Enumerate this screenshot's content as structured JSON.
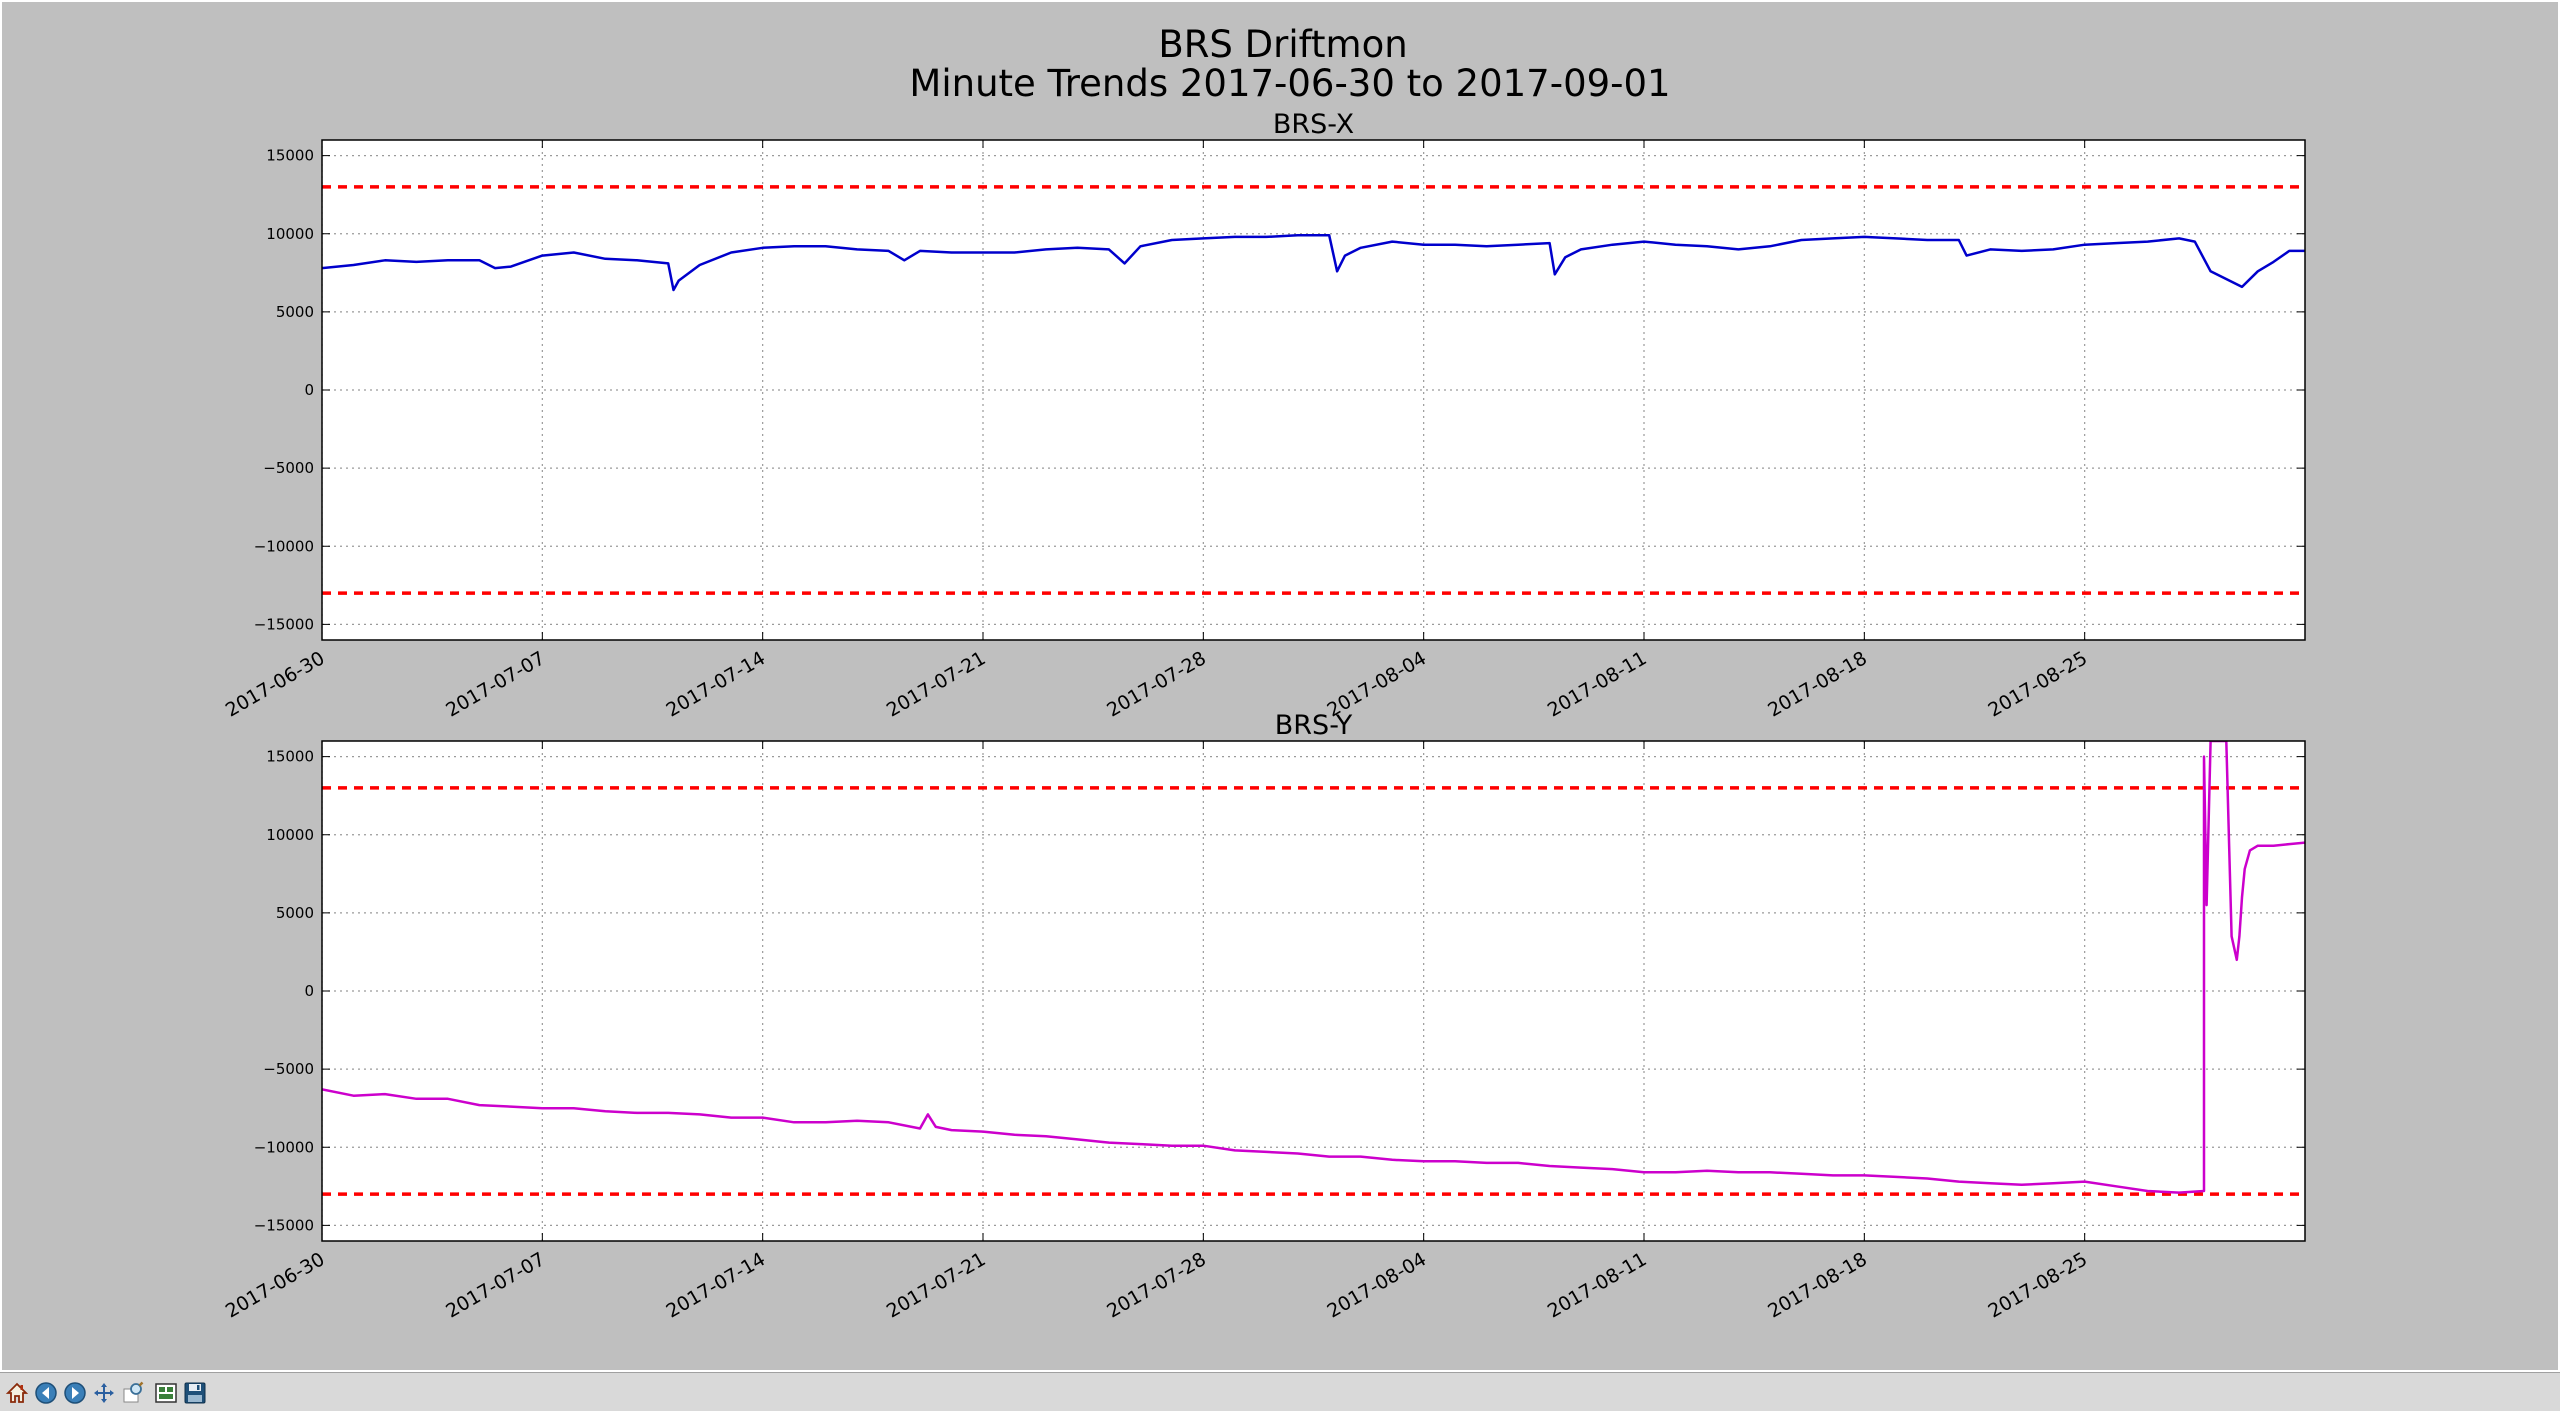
{
  "figure": {
    "title_line1": "BRS Driftmon",
    "title_line2": "Minute Trends 2017-06-30  to 2017-09-01"
  },
  "toolbar": {
    "buttons": [
      {
        "name": "home-icon"
      },
      {
        "name": "back-arrow-icon"
      },
      {
        "name": "forward-arrow-icon"
      },
      {
        "name": "pan-icon"
      },
      {
        "name": "zoom-icon"
      },
      {
        "name": "subplots-config-icon"
      },
      {
        "name": "save-icon"
      }
    ]
  },
  "chart_data": [
    {
      "type": "line",
      "title": "BRS-X",
      "xlabel": "",
      "ylabel": "",
      "xlim": [
        "2017-06-30",
        "2017-09-01"
      ],
      "ylim": [
        -16000,
        16000
      ],
      "x_ticks": [
        "2017-06-30",
        "2017-07-07",
        "2017-07-14",
        "2017-07-21",
        "2017-07-28",
        "2017-08-04",
        "2017-08-11",
        "2017-08-18",
        "2017-08-25"
      ],
      "y_ticks": [
        15000,
        10000,
        5000,
        0,
        -5000,
        -10000,
        -15000
      ],
      "y_tick_labels": [
        "15000",
        "10000",
        "5000",
        "0",
        "−5000",
        "−10000",
        "−15000"
      ],
      "grid": true,
      "thresholds": [
        13000,
        -13000
      ],
      "threshold_color": "#ff0000",
      "series": [
        {
          "color": "#0000cc",
          "x": [
            "2017-06-30",
            "2017-07-01",
            "2017-07-02",
            "2017-07-03",
            "2017-07-04",
            "2017-07-05",
            "2017-07-05 12:00",
            "2017-07-06",
            "2017-07-07",
            "2017-07-08",
            "2017-07-09",
            "2017-07-10",
            "2017-07-11",
            "2017-07-11 04:00",
            "2017-07-11 08:00",
            "2017-07-12",
            "2017-07-13",
            "2017-07-14",
            "2017-07-15",
            "2017-07-16",
            "2017-07-17",
            "2017-07-18",
            "2017-07-18 12:00",
            "2017-07-19",
            "2017-07-20",
            "2017-07-21",
            "2017-07-22",
            "2017-07-23",
            "2017-07-24",
            "2017-07-25",
            "2017-07-25 12:00",
            "2017-07-26",
            "2017-07-27",
            "2017-07-28",
            "2017-07-29",
            "2017-07-30",
            "2017-07-31",
            "2017-08-01",
            "2017-08-01 06:00",
            "2017-08-01 12:00",
            "2017-08-02",
            "2017-08-03",
            "2017-08-04",
            "2017-08-05",
            "2017-08-06",
            "2017-08-07",
            "2017-08-08",
            "2017-08-08 04:00",
            "2017-08-08 12:00",
            "2017-08-09",
            "2017-08-10",
            "2017-08-11",
            "2017-08-12",
            "2017-08-13",
            "2017-08-14",
            "2017-08-15",
            "2017-08-16",
            "2017-08-17",
            "2017-08-18",
            "2017-08-19",
            "2017-08-20",
            "2017-08-21",
            "2017-08-21 06:00",
            "2017-08-22",
            "2017-08-23",
            "2017-08-24",
            "2017-08-25",
            "2017-08-26",
            "2017-08-27",
            "2017-08-28",
            "2017-08-28 12:00",
            "2017-08-29",
            "2017-08-30",
            "2017-08-30 12:00",
            "2017-08-31",
            "2017-08-31 12:00",
            "2017-09-01"
          ],
          "y": [
            7800,
            8000,
            8300,
            8200,
            8300,
            8300,
            7800,
            7900,
            8600,
            8800,
            8400,
            8300,
            8100,
            6400,
            7000,
            8000,
            8800,
            9100,
            9200,
            9200,
            9000,
            8900,
            8300,
            8900,
            8800,
            8800,
            8800,
            9000,
            9100,
            9000,
            8100,
            9200,
            9600,
            9700,
            9800,
            9800,
            9900,
            9900,
            7600,
            8600,
            9100,
            9500,
            9300,
            9300,
            9200,
            9300,
            9400,
            7400,
            8500,
            9000,
            9300,
            9500,
            9300,
            9200,
            9000,
            9200,
            9600,
            9700,
            9800,
            9700,
            9600,
            9600,
            8600,
            9000,
            8900,
            9000,
            9300,
            9400,
            9500,
            9700,
            9500,
            7600,
            6600,
            7600,
            8200,
            8900,
            8900
          ]
        }
      ]
    },
    {
      "type": "line",
      "title": "BRS-Y",
      "xlabel": "",
      "ylabel": "",
      "xlim": [
        "2017-06-30",
        "2017-09-01"
      ],
      "ylim": [
        -16000,
        16000
      ],
      "x_ticks": [
        "2017-06-30",
        "2017-07-07",
        "2017-07-14",
        "2017-07-21",
        "2017-07-28",
        "2017-08-04",
        "2017-08-11",
        "2017-08-18",
        "2017-08-25"
      ],
      "y_ticks": [
        15000,
        10000,
        5000,
        0,
        -5000,
        -10000,
        -15000
      ],
      "y_tick_labels": [
        "15000",
        "10000",
        "5000",
        "0",
        "−5000",
        "−10000",
        "−15000"
      ],
      "grid": true,
      "thresholds": [
        13000,
        -13000
      ],
      "threshold_color": "#ff0000",
      "series": [
        {
          "color": "#cc00cc",
          "x": [
            "2017-06-30",
            "2017-07-01",
            "2017-07-02",
            "2017-07-03",
            "2017-07-04",
            "2017-07-05",
            "2017-07-06",
            "2017-07-07",
            "2017-07-08",
            "2017-07-09",
            "2017-07-10",
            "2017-07-11",
            "2017-07-12",
            "2017-07-13",
            "2017-07-14",
            "2017-07-15",
            "2017-07-16",
            "2017-07-17",
            "2017-07-18",
            "2017-07-19",
            "2017-07-19 06:00",
            "2017-07-19 12:00",
            "2017-07-20",
            "2017-07-21",
            "2017-07-22",
            "2017-07-23",
            "2017-07-24",
            "2017-07-25",
            "2017-07-26",
            "2017-07-27",
            "2017-07-28",
            "2017-07-29",
            "2017-07-30",
            "2017-07-31",
            "2017-08-01",
            "2017-08-02",
            "2017-08-03",
            "2017-08-04",
            "2017-08-05",
            "2017-08-06",
            "2017-08-07",
            "2017-08-08",
            "2017-08-09",
            "2017-08-10",
            "2017-08-11",
            "2017-08-12",
            "2017-08-13",
            "2017-08-14",
            "2017-08-15",
            "2017-08-16",
            "2017-08-17",
            "2017-08-18",
            "2017-08-19",
            "2017-08-20",
            "2017-08-21",
            "2017-08-22",
            "2017-08-23",
            "2017-08-24",
            "2017-08-25",
            "2017-08-26",
            "2017-08-27",
            "2017-08-28",
            "2017-08-28 19:00",
            "2017-08-28 19:01",
            "2017-08-28 21:00",
            "2017-08-29",
            "2017-08-29 03:00",
            "2017-08-29 06:00",
            "2017-08-29 09:00",
            "2017-08-29 12:00",
            "2017-08-29 16:00",
            "2017-08-29 20:00",
            "2017-08-29 22:00",
            "2017-08-30",
            "2017-08-30 02:00",
            "2017-08-30 06:00",
            "2017-08-30 12:00",
            "2017-08-30 18:00",
            "2017-08-31",
            "2017-08-31 12:00",
            "2017-09-01"
          ],
          "y": [
            -6300,
            -6700,
            -6600,
            -6900,
            -6900,
            -7300,
            -7400,
            -7500,
            -7500,
            -7700,
            -7800,
            -7800,
            -7900,
            -8100,
            -8100,
            -8400,
            -8400,
            -8300,
            -8400,
            -8800,
            -7900,
            -8700,
            -8900,
            -9000,
            -9200,
            -9300,
            -9500,
            -9700,
            -9800,
            -9900,
            -9900,
            -10200,
            -10300,
            -10400,
            -10600,
            -10600,
            -10800,
            -10900,
            -10900,
            -11000,
            -11000,
            -11200,
            -11300,
            -11400,
            -11600,
            -11600,
            -11500,
            -11600,
            -11600,
            -11700,
            -11800,
            -11800,
            -11900,
            -12000,
            -12200,
            -12300,
            -12400,
            -12300,
            -12200,
            -12500,
            -12800,
            -12900,
            -12800,
            15000,
            5500,
            16000,
            16000,
            16000,
            16000,
            16000,
            3500,
            2000,
            3500,
            6000,
            7800,
            9000,
            9300,
            9300,
            9300,
            9400,
            9500
          ]
        }
      ]
    }
  ]
}
